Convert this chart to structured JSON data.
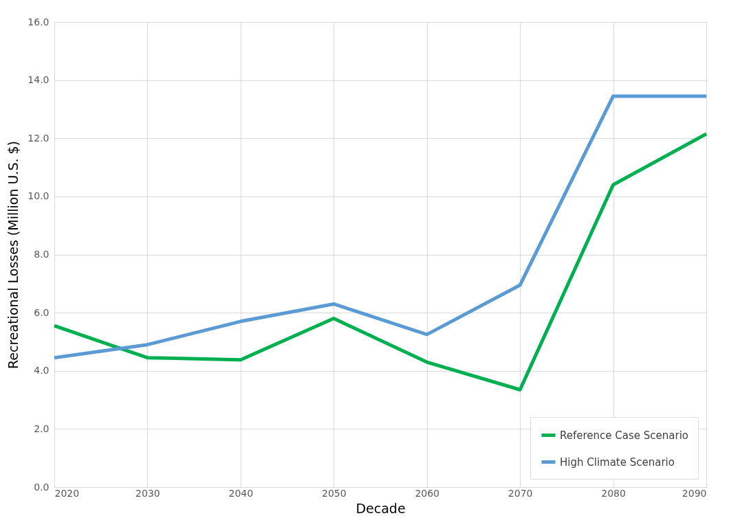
{
  "chart_data": {
    "type": "line",
    "xlabel": "Decade",
    "ylabel": "Recreational Losses (Million U.S. $)",
    "x": [
      2020,
      2030,
      2040,
      2050,
      2060,
      2070,
      2080,
      2090
    ],
    "series": [
      {
        "name": "Reference Case Scenario",
        "color": "#00b050",
        "values": [
          5.55,
          4.45,
          4.38,
          5.8,
          4.3,
          3.35,
          10.4,
          12.15
        ]
      },
      {
        "name": "High Climate Scenario",
        "color": "#5b9bd5",
        "values": [
          4.45,
          4.9,
          5.7,
          6.3,
          5.25,
          6.95,
          13.45,
          13.45
        ]
      }
    ],
    "xlim": [
      2020,
      2090
    ],
    "xticks": [
      2020,
      2030,
      2040,
      2050,
      2060,
      2070,
      2080,
      2090
    ],
    "ylim": [
      0,
      16
    ],
    "yticks": [
      {
        "value": 0,
        "label": "0.0"
      },
      {
        "value": 2,
        "label": "2.0"
      },
      {
        "value": 4,
        "label": "4.0"
      },
      {
        "value": 6,
        "label": "6.0"
      },
      {
        "value": 8,
        "label": "8.0"
      },
      {
        "value": 10,
        "label": "10.0"
      },
      {
        "value": 12,
        "label": "12.0"
      },
      {
        "value": 14,
        "label": "14.0"
      },
      {
        "value": 16,
        "label": "16.0"
      }
    ],
    "grid": true,
    "legend": "bottom right",
    "marker": "none",
    "line_style": "solid"
  }
}
